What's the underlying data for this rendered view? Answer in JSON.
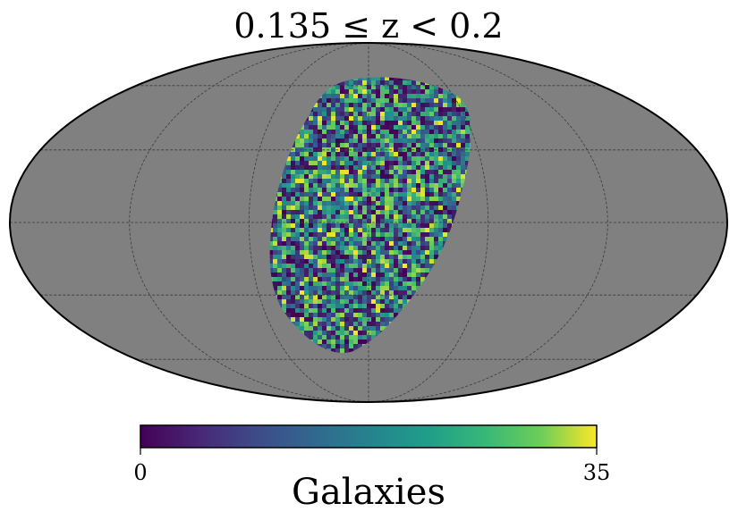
{
  "chart_data": {
    "type": "heatmap",
    "projection": "mollweide",
    "title": "0.135 ≤ z < 0.2",
    "colorbar": {
      "label": "Galaxies",
      "min": 0,
      "max": 35,
      "tick_labels": [
        "0",
        "35"
      ],
      "colormap": "viridis",
      "orientation": "horizontal"
    },
    "background_color": "#808080",
    "grid": true,
    "graticule": {
      "longitude_step_deg": 60,
      "latitude_step_deg": 30
    },
    "footprint": {
      "description_color_stops": [
        "#440154",
        "#3b528b",
        "#21918c",
        "#5ec962",
        "#fde725"
      ]
    }
  }
}
